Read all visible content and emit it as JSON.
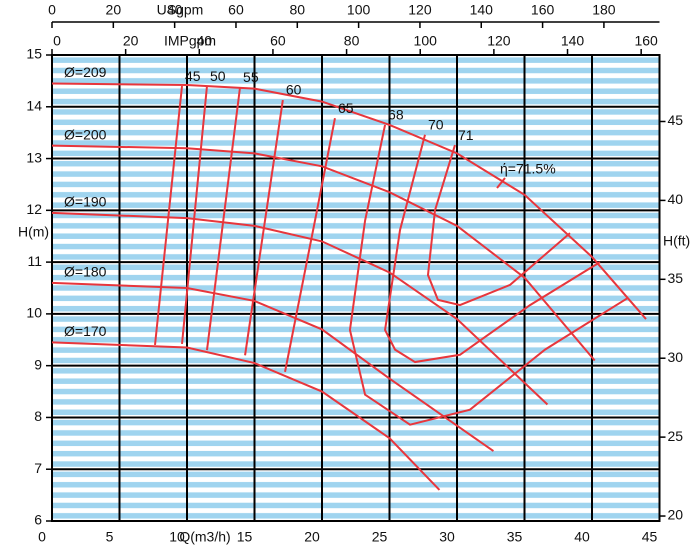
{
  "chart_data": {
    "type": "line",
    "xlabel": "Q(m3/h)",
    "ylabel": "H(m)",
    "y2label": "H(ft)",
    "xlim": [
      0,
      45
    ],
    "xticks": [
      0,
      5,
      10,
      15,
      20,
      25,
      30,
      35,
      40,
      45
    ],
    "ylim": [
      6,
      15
    ],
    "yticks": [
      6,
      7,
      8,
      9,
      10,
      11,
      12,
      13,
      14,
      15
    ],
    "y2lim": [
      19.685,
      49.213
    ],
    "y2ticks": [
      20,
      25,
      30,
      35,
      40,
      45
    ],
    "top_axes": [
      {
        "label": "USgpm",
        "lim": [
          0,
          198.13
        ],
        "ticks": [
          0,
          20,
          40,
          60,
          80,
          100,
          120,
          140,
          160,
          180
        ]
      },
      {
        "label": "IMPgpm",
        "lim": [
          0,
          164.98
        ],
        "ticks": [
          0,
          20,
          40,
          60,
          80,
          100,
          120,
          140,
          160
        ]
      }
    ],
    "grid": true,
    "color": "#e8363c",
    "series": [
      {
        "name": "Ø=209",
        "x": [
          0,
          10,
          15,
          20,
          25,
          30,
          35,
          40,
          44
        ],
        "values": [
          14.45,
          14.42,
          14.35,
          14.1,
          13.65,
          13.1,
          12.3,
          11.1,
          9.9
        ]
      },
      {
        "name": "Ø=200",
        "x": [
          0,
          10,
          15,
          20,
          25,
          30,
          35,
          40.2
        ],
        "values": [
          13.25,
          13.2,
          13.1,
          12.85,
          12.35,
          11.7,
          10.7,
          9.1
        ]
      },
      {
        "name": "Ø=190",
        "x": [
          0,
          10,
          15,
          20,
          25,
          30,
          36.7
        ],
        "values": [
          11.95,
          11.85,
          11.7,
          11.4,
          10.8,
          9.9,
          8.25
        ]
      },
      {
        "name": "Ø=180",
        "x": [
          0,
          10,
          15,
          20,
          25,
          32.7
        ],
        "values": [
          10.6,
          10.5,
          10.25,
          9.7,
          8.75,
          7.35
        ]
      },
      {
        "name": "Ø=170",
        "x": [
          0,
          10,
          15,
          20,
          25,
          28.7
        ],
        "values": [
          9.45,
          9.35,
          9.05,
          8.5,
          7.6,
          6.6
        ]
      },
      {
        "name": "45",
        "x": [
          9.63,
          7.63
        ],
        "values": [
          14.4,
          9.4
        ]
      },
      {
        "name": "50",
        "x": [
          11.48,
          9.63
        ],
        "values": [
          14.4,
          9.42
        ]
      },
      {
        "name": "55",
        "x": [
          13.93,
          11.48
        ],
        "values": [
          14.38,
          9.3
        ]
      },
      {
        "name": "60",
        "x": [
          17.1,
          14.3
        ],
        "values": [
          14.13,
          9.2
        ]
      },
      {
        "name": "65",
        "x": [
          20.96,
          19.48,
          17.26
        ],
        "values": [
          13.78,
          11.8,
          8.88
        ]
      },
      {
        "name": "68",
        "x": [
          24.67,
          23.19,
          22.07,
          23.19,
          26.52,
          30.96,
          36.52,
          42.67
        ],
        "values": [
          13.65,
          11.8,
          9.69,
          8.44,
          7.86,
          8.15,
          9.31,
          10.31
        ]
      },
      {
        "name": "70",
        "x": [
          27.63,
          25.78,
          24.67,
          25.41,
          26.89,
          30.22,
          35.41,
          40.59
        ],
        "values": [
          13.46,
          11.62,
          9.69,
          9.31,
          9.07,
          9.21,
          10.17,
          11.0
        ]
      },
      {
        "name": "71",
        "x": [
          29.85,
          28.37,
          27.85,
          28.59,
          30.22,
          33.93,
          38.37
        ],
        "values": [
          13.26,
          12.0,
          10.75,
          10.27,
          10.17,
          10.56,
          11.56
        ]
      }
    ],
    "annotation": "ή=71.5%"
  }
}
